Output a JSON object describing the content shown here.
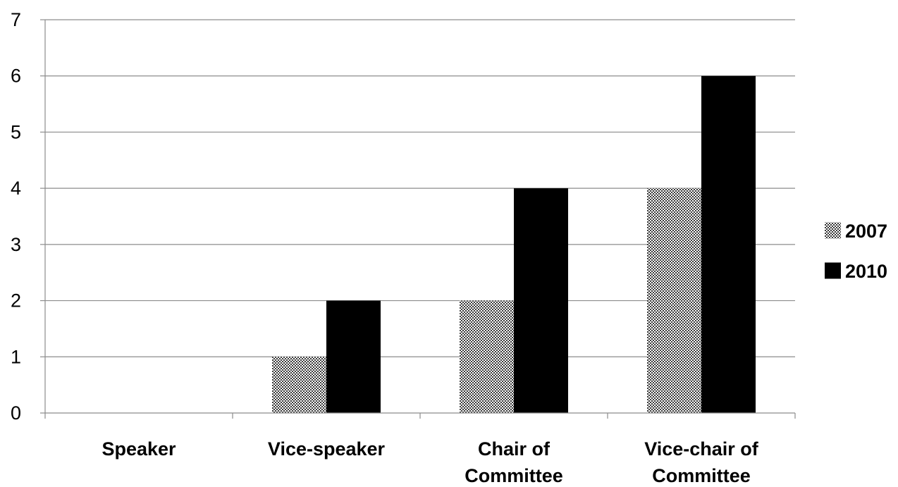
{
  "chart_data": {
    "type": "bar",
    "title": "",
    "xlabel": "",
    "ylabel": "",
    "categories": [
      [
        "Speaker"
      ],
      [
        "Vice-speaker"
      ],
      [
        "Chair of",
        "Committee"
      ],
      [
        "Vice-chair of",
        "Committee"
      ]
    ],
    "series": [
      {
        "name": "2007",
        "values": [
          0,
          1,
          2,
          4
        ],
        "pattern": "checker",
        "color": "#555555"
      },
      {
        "name": "2010",
        "values": [
          0,
          2,
          4,
          6
        ],
        "pattern": "solid",
        "color": "#000000"
      }
    ],
    "ylim": [
      0,
      7
    ],
    "yticks": [
      0,
      1,
      2,
      3,
      4,
      5,
      6,
      7
    ],
    "grid": true,
    "legend_position": "right"
  }
}
